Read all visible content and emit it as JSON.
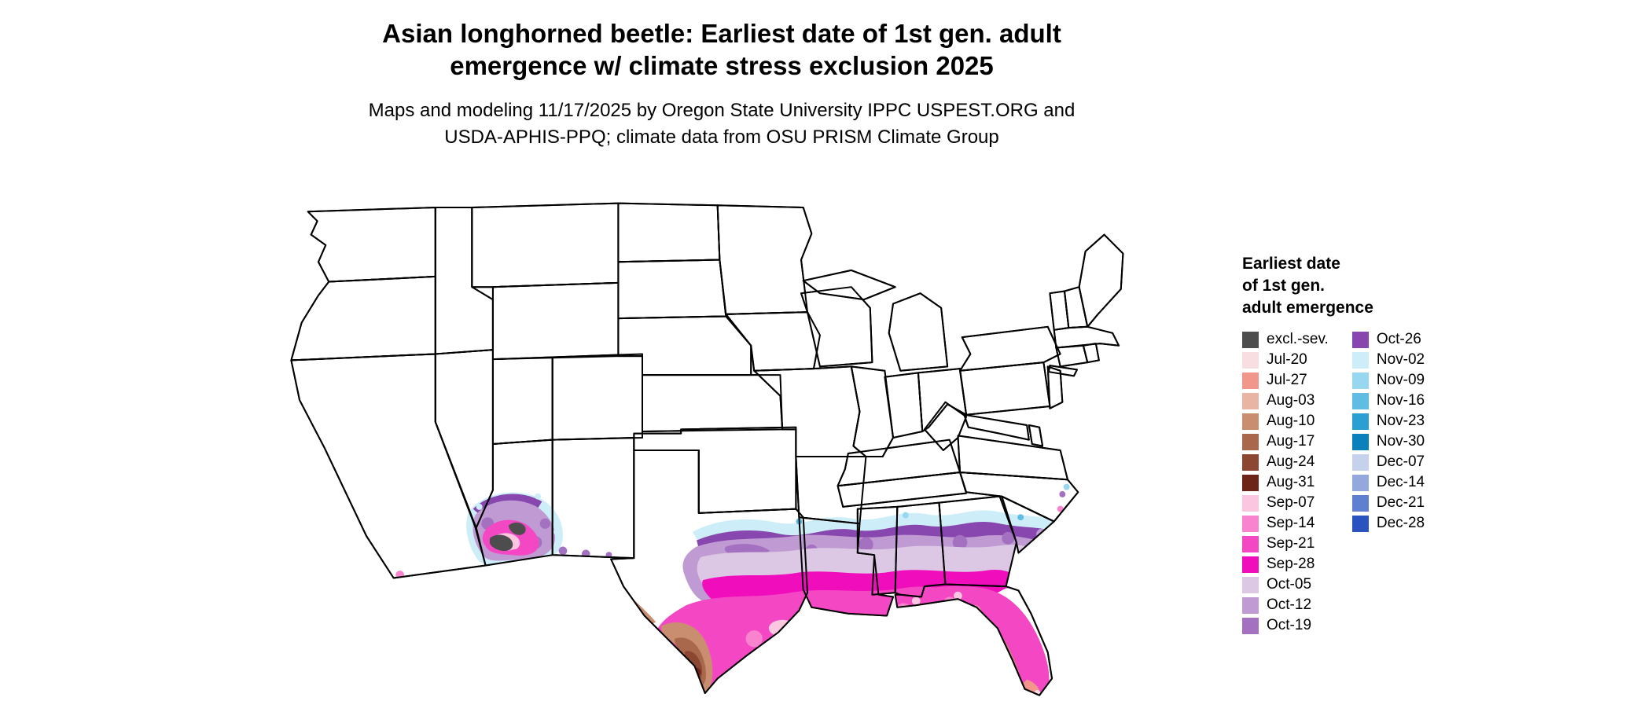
{
  "title": {
    "line1": "Asian longhorned beetle: Earliest date of 1st gen. adult",
    "line2": "emergence w/ climate stress exclusion 2025"
  },
  "subtitle": {
    "line1": "Maps and modeling 11/17/2025 by Oregon State University IPPC USPEST.ORG and",
    "line2": "USDA-APHIS-PPQ; climate data from OSU PRISM Climate Group"
  },
  "legend": {
    "heading_lines": [
      "Earliest date",
      "of 1st gen.",
      "adult emergence"
    ],
    "column1": [
      {
        "label": "excl.-sev.",
        "color": "#4d4d4d"
      },
      {
        "label": "Jul-20",
        "color": "#f8dde1"
      },
      {
        "label": "Jul-27",
        "color": "#f2968c"
      },
      {
        "label": "Aug-03",
        "color": "#e8b4a4"
      },
      {
        "label": "Aug-10",
        "color": "#c98d70"
      },
      {
        "label": "Aug-17",
        "color": "#a9684c"
      },
      {
        "label": "Aug-24",
        "color": "#8c4732"
      },
      {
        "label": "Aug-31",
        "color": "#6d2419"
      },
      {
        "label": "Sep-07",
        "color": "#fbc6e0"
      },
      {
        "label": "Sep-14",
        "color": "#f983cf"
      },
      {
        "label": "Sep-21",
        "color": "#f447c4"
      },
      {
        "label": "Sep-28",
        "color": "#ef0dbc"
      },
      {
        "label": "Oct-05",
        "color": "#dcc7e4"
      },
      {
        "label": "Oct-12",
        "color": "#c09bd3"
      },
      {
        "label": "Oct-19",
        "color": "#a471c1"
      }
    ],
    "column2": [
      {
        "label": "Oct-26",
        "color": "#8847af"
      },
      {
        "label": "Nov-02",
        "color": "#cdeef9"
      },
      {
        "label": "Nov-09",
        "color": "#97d8f0"
      },
      {
        "label": "Nov-16",
        "color": "#5fbde4"
      },
      {
        "label": "Nov-23",
        "color": "#2b9fd1"
      },
      {
        "label": "Nov-30",
        "color": "#0b81bb"
      },
      {
        "label": "Dec-07",
        "color": "#c6d2ec"
      },
      {
        "label": "Dec-14",
        "color": "#93a9de"
      },
      {
        "label": "Dec-21",
        "color": "#5f7fd0"
      },
      {
        "label": "Dec-28",
        "color": "#2a53c0"
      }
    ]
  }
}
